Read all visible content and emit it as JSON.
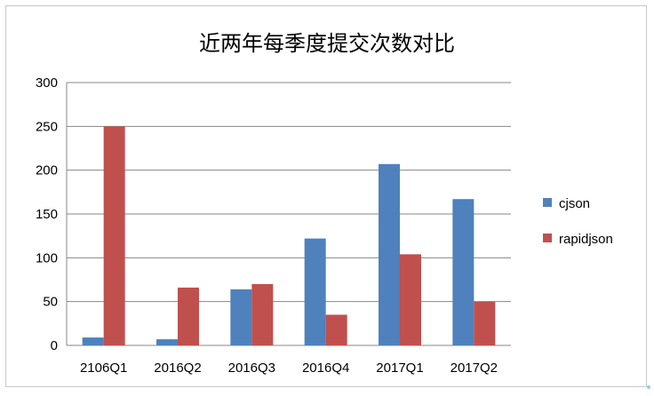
{
  "chart_data": {
    "type": "bar",
    "title": "近两年每季度提交次数对比",
    "categories": [
      "2106Q1",
      "2016Q2",
      "2016Q3",
      "2016Q4",
      "2017Q1",
      "2017Q2"
    ],
    "series": [
      {
        "name": "cjson",
        "color": "#4f81bd",
        "values": [
          9,
          7,
          64,
          122,
          207,
          167
        ]
      },
      {
        "name": "rapidjson",
        "color": "#c0504d",
        "values": [
          250,
          66,
          70,
          35,
          104,
          50
        ]
      }
    ],
    "ylim": [
      0,
      300
    ],
    "yticks": [
      0,
      50,
      100,
      150,
      200,
      250,
      300
    ],
    "grid": true,
    "legend": "right"
  }
}
